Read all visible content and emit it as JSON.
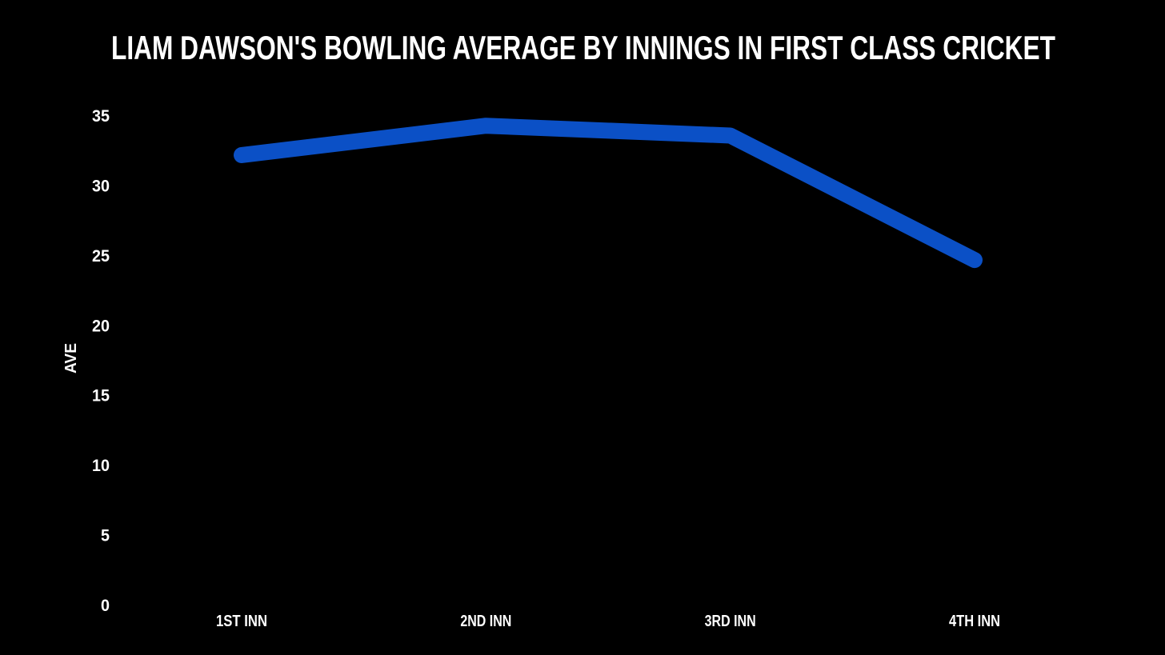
{
  "page": {
    "background_color": "#000000",
    "text_color": "#ffffff"
  },
  "chart_data": {
    "type": "line",
    "title": "LIAM DAWSON'S BOWLING AVERAGE BY INNINGS IN FIRST CLASS CRICKET",
    "categories": [
      "1ST INN",
      "2ND INN",
      "3RD INN",
      "4TH INN"
    ],
    "series": [
      {
        "name": "Bowling average",
        "values": [
          32.2,
          34.3,
          33.6,
          24.7
        ],
        "color": "#0b50c6"
      }
    ],
    "xlabel": "",
    "ylabel": "AVE",
    "ylim": [
      0,
      35
    ],
    "yticks": [
      0,
      5,
      10,
      15,
      20,
      25,
      30,
      35
    ],
    "grid": false,
    "legend_position": "none",
    "line_width": 20,
    "line_cap": "round"
  }
}
